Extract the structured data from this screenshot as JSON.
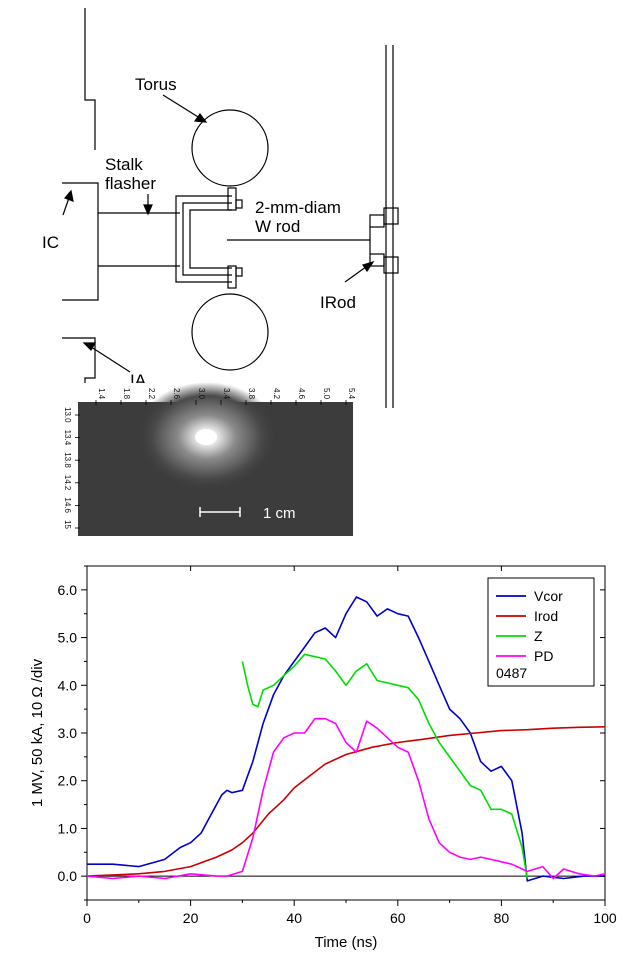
{
  "diagram": {
    "labels": {
      "torus": "Torus",
      "stalk": "Stalk",
      "flasher": "flasher",
      "rod_line1": "2-mm-diam",
      "rod_line2": "W rod",
      "ic": "IC",
      "irod": "IRod",
      "ia": "IA"
    }
  },
  "image_inset": {
    "ruler_top": [
      "1.4",
      "1.8",
      "2.2",
      "2.6",
      "3.0",
      "3.4",
      "3.8",
      "4.2",
      "4.6",
      "5.0",
      "5.4"
    ],
    "ruler_left": [
      "13.0",
      "13.4",
      "13.8",
      "14.2",
      "14.6",
      "15"
    ],
    "scale_bar": "1 cm"
  },
  "chart_data": {
    "type": "line",
    "xlabel": "Time (ns)",
    "ylabel": "1 MV, 50 kA, 10 Ω /div",
    "xlim": [
      0,
      100
    ],
    "ylim": [
      -0.5,
      6.5
    ],
    "xticks": [
      0,
      20,
      40,
      60,
      80,
      100
    ],
    "yticks": [
      0.0,
      1.0,
      2.0,
      3.0,
      4.0,
      5.0,
      6.0
    ],
    "ytick_labels": [
      "0.0",
      "1.0",
      "2.0",
      "3.0",
      "4.0",
      "5.0",
      "6.0"
    ],
    "legend_position": "top-right",
    "legend_note": "0487",
    "series": [
      {
        "name": "Vcor",
        "color": "#0000cc",
        "x": [
          0,
          5,
          10,
          15,
          18,
          20,
          22,
          24,
          26,
          27,
          28,
          30,
          32,
          34,
          36,
          38,
          40,
          42,
          44,
          46,
          48,
          50,
          52,
          54,
          56,
          58,
          60,
          62,
          64,
          66,
          68,
          70,
          72,
          74,
          76,
          78,
          80,
          82,
          84,
          85,
          88,
          92,
          96,
          100
        ],
        "y": [
          0.25,
          0.25,
          0.2,
          0.35,
          0.6,
          0.7,
          0.9,
          1.3,
          1.7,
          1.8,
          1.75,
          1.8,
          2.4,
          3.2,
          3.8,
          4.2,
          4.5,
          4.8,
          5.1,
          5.2,
          5.0,
          5.5,
          5.85,
          5.75,
          5.45,
          5.6,
          5.5,
          5.45,
          5.0,
          4.5,
          4.0,
          3.5,
          3.3,
          3.0,
          2.4,
          2.2,
          2.3,
          2.0,
          0.9,
          -0.1,
          0.0,
          -0.05,
          0.0,
          0.0
        ]
      },
      {
        "name": "Irod",
        "color": "#cc0000",
        "x": [
          0,
          10,
          15,
          20,
          25,
          28,
          30,
          32,
          35,
          38,
          40,
          43,
          46,
          50,
          55,
          60,
          65,
          70,
          75,
          80,
          85,
          90,
          95,
          100
        ],
        "y": [
          0.0,
          0.05,
          0.1,
          0.2,
          0.4,
          0.55,
          0.7,
          0.9,
          1.3,
          1.6,
          1.85,
          2.1,
          2.35,
          2.55,
          2.7,
          2.8,
          2.87,
          2.95,
          3.0,
          3.05,
          3.07,
          3.1,
          3.12,
          3.13
        ]
      },
      {
        "name": "Z",
        "color": "#00dd00",
        "x": [
          30,
          31,
          32,
          33,
          34,
          36,
          38,
          40,
          42,
          44,
          46,
          48,
          50,
          52,
          54,
          56,
          58,
          60,
          62,
          64,
          66,
          68,
          70,
          72,
          74,
          76,
          78,
          80,
          82,
          84,
          85
        ],
        "y": [
          4.5,
          4.0,
          3.6,
          3.55,
          3.9,
          4.0,
          4.2,
          4.4,
          4.65,
          4.6,
          4.55,
          4.3,
          4.0,
          4.3,
          4.45,
          4.1,
          4.05,
          4.0,
          3.95,
          3.7,
          3.2,
          2.8,
          2.5,
          2.2,
          1.9,
          1.8,
          1.4,
          1.4,
          1.3,
          0.6,
          -0.05
        ]
      },
      {
        "name": "PD",
        "color": "#ff00ff",
        "x": [
          0,
          5,
          10,
          15,
          20,
          25,
          27,
          30,
          32,
          34,
          36,
          38,
          40,
          42,
          44,
          46,
          48,
          50,
          52,
          54,
          56,
          58,
          60,
          62,
          64,
          66,
          68,
          70,
          72,
          74,
          76,
          78,
          80,
          82,
          85,
          88,
          90,
          92,
          95,
          98,
          100
        ],
        "y": [
          0.0,
          -0.05,
          0.0,
          -0.05,
          0.05,
          0.0,
          0.0,
          0.1,
          0.8,
          1.8,
          2.6,
          2.9,
          3.0,
          3.0,
          3.3,
          3.3,
          3.2,
          2.8,
          2.6,
          3.25,
          3.1,
          2.9,
          2.7,
          2.6,
          2.0,
          1.2,
          0.7,
          0.5,
          0.4,
          0.35,
          0.4,
          0.35,
          0.3,
          0.25,
          0.1,
          0.2,
          -0.05,
          0.15,
          0.05,
          0.0,
          0.05
        ]
      }
    ]
  }
}
